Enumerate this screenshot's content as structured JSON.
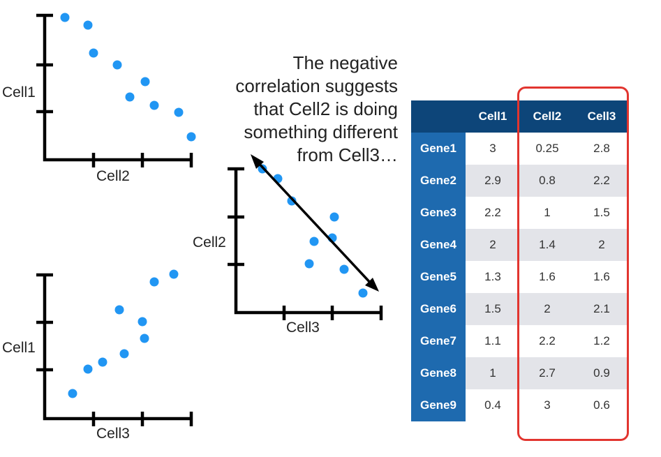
{
  "note_lines": [
    "The negative",
    "correlation suggests",
    "that Cell2 is doing",
    "something different",
    "from Cell3…"
  ],
  "colors": {
    "points": "#2196f3",
    "header": "#0d4579",
    "row_header": "#1e6aaf",
    "highlight": "#e2352f",
    "row_alt": "#e3e4e9"
  },
  "plots": {
    "cell1_vs_cell2": {
      "xlabel": "Cell2",
      "ylabel": "Cell1"
    },
    "cell2_vs_cell3": {
      "xlabel": "Cell3",
      "ylabel": "Cell2"
    },
    "cell1_vs_cell3": {
      "xlabel": "Cell3",
      "ylabel": "Cell1"
    }
  },
  "table": {
    "columns": [
      "Cell1",
      "Cell2",
      "Cell3"
    ],
    "highlighted_column": "Cell2",
    "rows": [
      {
        "gene": "Gene1",
        "values": [
          "3",
          "0.25",
          "2.8"
        ]
      },
      {
        "gene": "Gene2",
        "values": [
          "2.9",
          "0.8",
          "2.2"
        ]
      },
      {
        "gene": "Gene3",
        "values": [
          "2.2",
          "1",
          "1.5"
        ]
      },
      {
        "gene": "Gene4",
        "values": [
          "2",
          "1.4",
          "2"
        ]
      },
      {
        "gene": "Gene5",
        "values": [
          "1.3",
          "1.6",
          "1.6"
        ]
      },
      {
        "gene": "Gene6",
        "values": [
          "1.5",
          "2",
          "2.1"
        ]
      },
      {
        "gene": "Gene7",
        "values": [
          "1.1",
          "2.2",
          "1.2"
        ]
      },
      {
        "gene": "Gene8",
        "values": [
          "1",
          "2.7",
          "0.9"
        ]
      },
      {
        "gene": "Gene9",
        "values": [
          "0.4",
          "3",
          "0.6"
        ]
      }
    ]
  }
}
